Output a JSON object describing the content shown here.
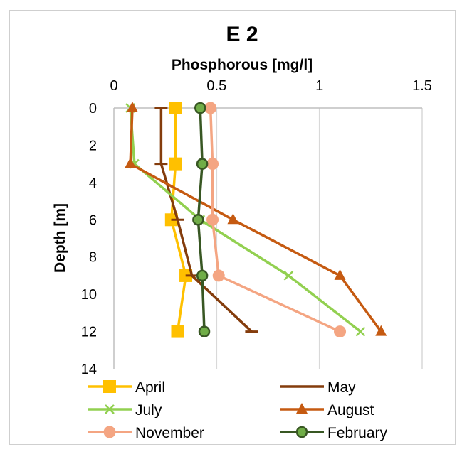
{
  "chart_data": {
    "type": "line",
    "title": "E 2",
    "xlabel": "Phosphorous  [mg/l]",
    "ylabel": "Depth [m]",
    "xlim": [
      0,
      1.5
    ],
    "ylim": [
      0,
      14
    ],
    "x_ticks": [
      "0",
      "0.5",
      "1",
      "1.5"
    ],
    "y_ticks": [
      "0",
      "2",
      "4",
      "6",
      "8",
      "10",
      "12",
      "14"
    ],
    "grid": "vertical",
    "legend_position": "bottom",
    "series": [
      {
        "name": "April",
        "color": "#ffc000",
        "marker": "square",
        "depth": [
          0,
          3,
          6,
          9,
          12
        ],
        "values": [
          0.3,
          0.3,
          0.28,
          0.35,
          0.31
        ]
      },
      {
        "name": "May",
        "color": "#843c0c",
        "marker": "dash",
        "depth": [
          0,
          3,
          6,
          9,
          12
        ],
        "values": [
          0.23,
          0.23,
          0.31,
          0.38,
          0.67
        ]
      },
      {
        "name": "July",
        "color": "#92d050",
        "marker": "x",
        "depth": [
          0,
          3,
          6,
          9,
          12
        ],
        "values": [
          0.08,
          0.1,
          0.42,
          0.85,
          1.2
        ]
      },
      {
        "name": "August",
        "color": "#c55a11",
        "marker": "triangle",
        "depth": [
          0,
          3,
          6,
          9,
          12
        ],
        "values": [
          0.09,
          0.08,
          0.58,
          1.1,
          1.3
        ]
      },
      {
        "name": "November",
        "color": "#f4a582",
        "marker": "circle",
        "depth": [
          0,
          3,
          6,
          9,
          12
        ],
        "values": [
          0.47,
          0.48,
          0.48,
          0.51,
          1.1
        ]
      },
      {
        "name": "February",
        "color": "#385723",
        "marker": "circle-filled",
        "depth": [
          0,
          3,
          6,
          9,
          12
        ],
        "values": [
          0.42,
          0.43,
          0.41,
          0.43,
          0.44
        ]
      }
    ]
  }
}
